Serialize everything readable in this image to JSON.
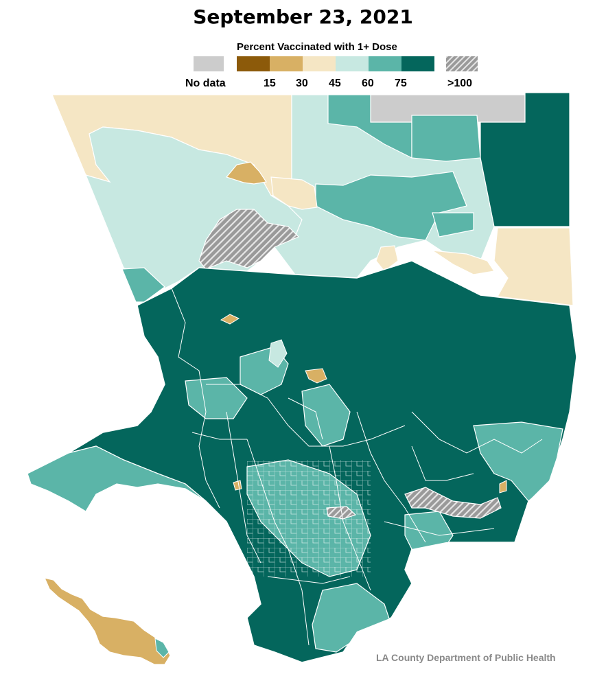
{
  "title": "September 23, 2021",
  "legend": {
    "title": "Percent Vaccinated with 1+ Dose",
    "no_data_label": "No data",
    "no_data_color": "#cccccc",
    "over_label": ">100",
    "over_color": "#9a9a9a",
    "bins": [
      {
        "color": "#8c5a0a"
      },
      {
        "color": "#d8b064"
      },
      {
        "color": "#f5e6c4"
      },
      {
        "color": "#c7e8e1"
      },
      {
        "color": "#5bb5a8"
      },
      {
        "color": "#04665c"
      }
    ],
    "ticks": [
      "15",
      "30",
      "45",
      "60",
      "75"
    ]
  },
  "credit": "LA County Department of Public Health"
}
